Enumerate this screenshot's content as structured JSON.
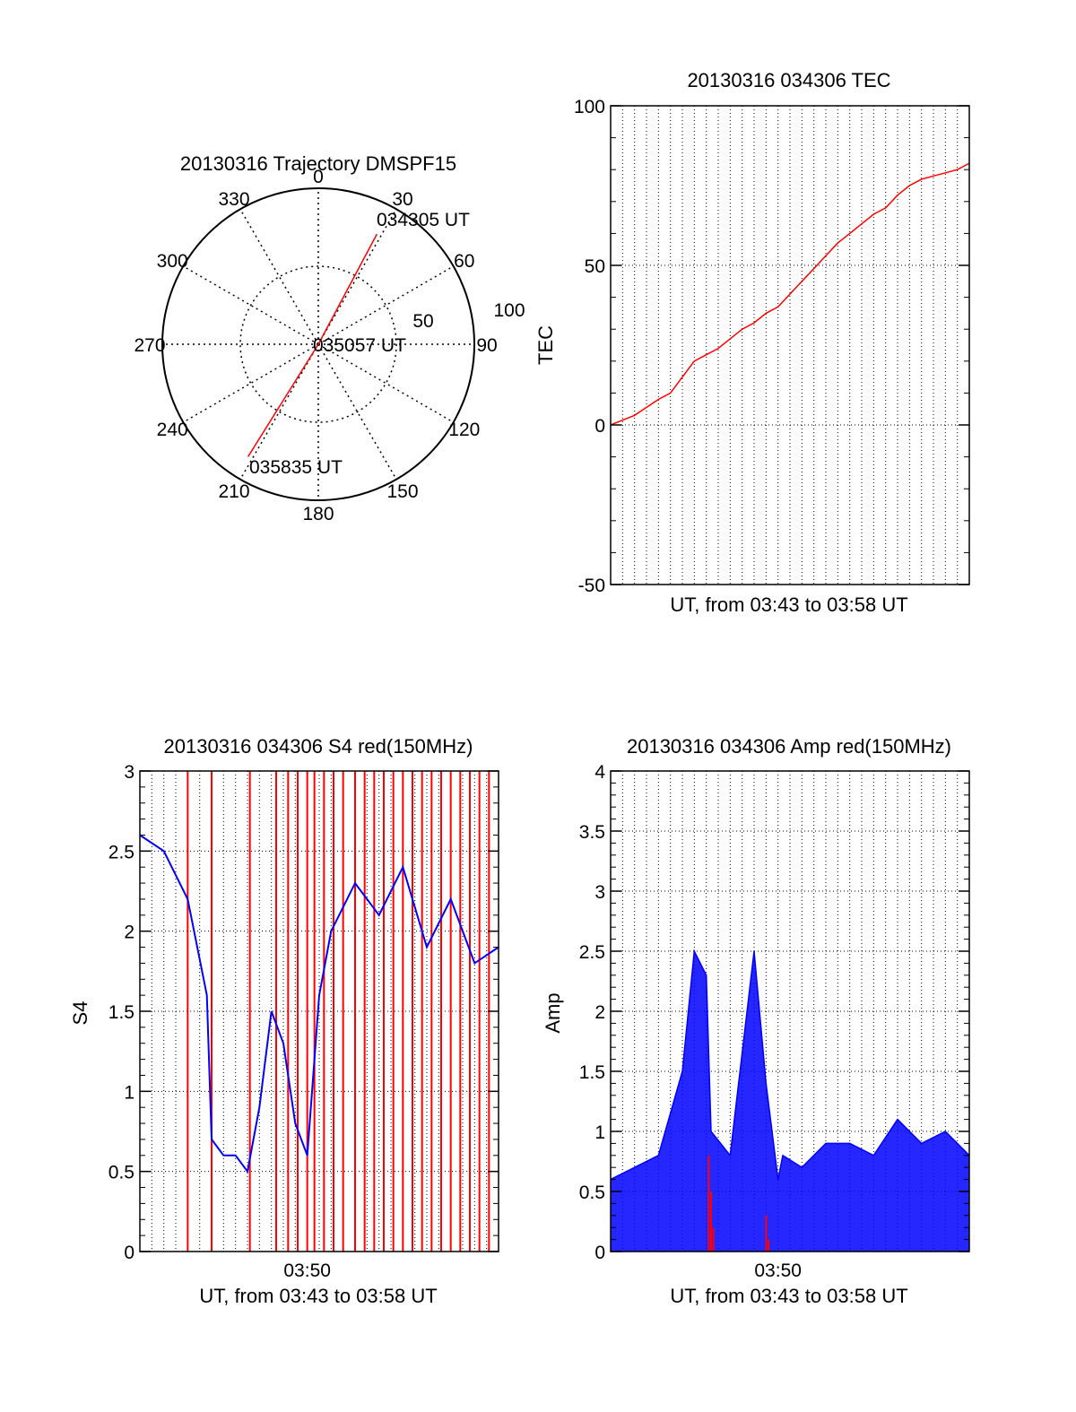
{
  "colors": {
    "red": "#ff0000",
    "blue": "#0000ff",
    "axis": "#000000"
  },
  "chart_data": [
    {
      "type": "polar",
      "title": "20130316 Trajectory DMSPF15",
      "angle_labels": [
        "0",
        "30",
        "60",
        "90",
        "120",
        "150",
        "180",
        "210",
        "240",
        "270",
        "300",
        "330"
      ],
      "angles_deg": [
        0,
        30,
        60,
        90,
        120,
        150,
        180,
        210,
        240,
        270,
        300,
        330
      ],
      "radius_labels": [
        "50",
        "100"
      ],
      "radius_max": 100,
      "radius_grid": [
        50
      ],
      "annotations": [
        "034305 UT",
        "035057 UT",
        "035835 UT"
      ],
      "trajectory": {
        "color": "red",
        "points": [
          {
            "az": 28,
            "zen": 80
          },
          {
            "az": 0,
            "zen": 0
          },
          {
            "az": 212,
            "zen": 85
          }
        ]
      }
    },
    {
      "type": "line",
      "title": "20130316 034306 TEC",
      "xlabel": "UT, from 03:43 to 03:58 UT",
      "ylabel": "TEC",
      "ylim": [
        -50,
        100
      ],
      "y_ticks": [
        "100",
        "50",
        "0",
        "-50"
      ],
      "y_tick_values": [
        100,
        50,
        0,
        -50
      ],
      "x_range_min": [
        0,
        15
      ],
      "series": [
        {
          "color": "red",
          "x": [
            0,
            0.5,
            1,
            1.5,
            2,
            2.5,
            3,
            3.5,
            4,
            4.5,
            5,
            5.5,
            6,
            6.5,
            7,
            7.5,
            8,
            8.5,
            9,
            9.5,
            10,
            10.5,
            11,
            11.5,
            12,
            12.5,
            13,
            13.5,
            14,
            14.5,
            15
          ],
          "y": [
            0,
            1.5,
            3,
            5.5,
            8,
            10,
            15,
            20,
            22,
            24,
            27,
            30,
            32,
            35,
            37,
            41,
            45,
            49,
            53,
            57,
            60,
            63,
            66,
            68,
            72,
            75,
            77,
            78,
            79,
            80,
            82
          ]
        }
      ]
    },
    {
      "type": "line",
      "title": "20130316 034306 S4 red(150MHz)",
      "xlabel": "UT, from 03:43 to 03:58 UT",
      "ylabel": "S4",
      "ylim": [
        0,
        3
      ],
      "y_ticks": [
        "3",
        "2.5",
        "2",
        "1.5",
        "1",
        "0.5",
        "0"
      ],
      "y_tick_values": [
        3,
        2.5,
        2,
        1.5,
        1,
        0.5,
        0
      ],
      "x_tick_label": "03:50",
      "x_tick_min": 7,
      "x_range_min": [
        0,
        15
      ],
      "series": [
        {
          "color": "blue",
          "x": [
            0,
            1,
            2,
            2.8,
            3,
            3.5,
            4,
            4.5,
            5,
            5.5,
            6,
            6.5,
            7,
            7.5,
            8,
            9,
            10,
            11,
            12,
            13,
            14,
            15
          ],
          "y": [
            2.6,
            2.5,
            2.2,
            1.6,
            0.7,
            0.6,
            0.6,
            0.5,
            0.9,
            1.5,
            1.3,
            0.8,
            0.6,
            1.6,
            2.0,
            2.3,
            2.1,
            2.4,
            1.9,
            2.2,
            1.8,
            1.9
          ]
        },
        {
          "color": "red",
          "note": "spikes to 3 (saturated)",
          "x_spikes": [
            2.0,
            3.0,
            4.6,
            5.7,
            6.2,
            6.6,
            7.0,
            7.3,
            7.7,
            8.1,
            8.5,
            9.0,
            9.4,
            9.8,
            10.2,
            10.6,
            11.0,
            11.4,
            11.8,
            12.2,
            12.6,
            13.0,
            13.4,
            13.8,
            14.2,
            14.6
          ],
          "y": 3
        }
      ]
    },
    {
      "type": "line",
      "title": "20130316 034306 Amp red(150MHz)",
      "xlabel": "UT, from 03:43 to 03:58 UT",
      "ylabel": "Amp",
      "ylim": [
        0,
        4
      ],
      "y_ticks": [
        "4",
        "3.5",
        "3",
        "2.5",
        "2",
        "1.5",
        "1",
        "0.5",
        "0"
      ],
      "y_tick_values": [
        4,
        3.5,
        3,
        2.5,
        2,
        1.5,
        1,
        0.5,
        0
      ],
      "x_tick_label": "03:50",
      "x_tick_min": 7,
      "x_range_min": [
        0,
        15
      ],
      "series": [
        {
          "color": "blue",
          "x": [
            0,
            1,
            2,
            3,
            3.5,
            4,
            4.2,
            5,
            6,
            6.5,
            7,
            7.2,
            8,
            9,
            10,
            11,
            12,
            13,
            14,
            15
          ],
          "y": [
            0.6,
            0.7,
            0.8,
            1.5,
            2.5,
            2.3,
            1.0,
            0.8,
            2.5,
            1.4,
            0.6,
            0.8,
            0.7,
            0.9,
            0.9,
            0.8,
            1.1,
            0.9,
            1.0,
            0.8
          ]
        },
        {
          "color": "red",
          "x": [
            4.1,
            4.2,
            4.3,
            6.5,
            6.6
          ],
          "y": [
            0.8,
            0.5,
            0.2,
            0.3,
            0.1
          ]
        }
      ]
    }
  ]
}
